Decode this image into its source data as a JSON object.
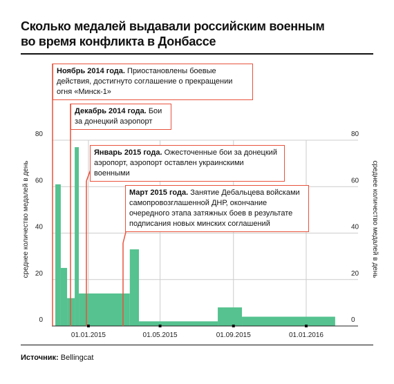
{
  "title": [
    "Сколько медалей выдавали российским военным",
    "во время конфликта в Донбассе"
  ],
  "chart_data": {
    "type": "histogram",
    "bins": [
      2014.848,
      2014.873,
      2014.902,
      2014.937,
      2014.956,
      2015.19,
      2015.232,
      2015.594,
      2015.705,
      2016.133
    ],
    "values": [
      61,
      25,
      12,
      77,
      14,
      33,
      2,
      8,
      4
    ],
    "color": "#55c28f",
    "xlim": [
      2014.832,
      2016.181
    ],
    "xticks": [
      {
        "value": 2015.0,
        "label": "01.01.2015"
      },
      {
        "value": 2015.329,
        "label": "01.05.2015"
      },
      {
        "value": 2015.666,
        "label": "01.09.2015"
      },
      {
        "value": 2016.0,
        "label": "01.01.2016"
      }
    ],
    "ylim": [
      0,
      80
    ],
    "yticks": [
      0,
      20,
      40,
      60,
      80
    ],
    "grid": true,
    "y_label": "среднее количество медалей в день",
    "annotations": [
      {
        "title": "Ноябрь 2014 года.",
        "text": "Приостановлены боевые действия, достигнуто соглашение о прекращении огня «Минск-1»"
      },
      {
        "title": "Декабрь 2014 года.",
        "text": "Бои за донецкий аэропорт"
      },
      {
        "title": "Январь 2015 года.",
        "text": "Ожесточенные бои за донецкий аэропорт, аэропорт оставлен украинскими военными"
      },
      {
        "title": "Март 2015 года.",
        "text": "Занятие Дебальцева войсками самопровозглашенной ДНР, окончание очередного этапа затяжных боев в результате подписания новых минских соглашений"
      }
    ]
  },
  "source": {
    "label": "Источник:",
    "text": "Bellingcat"
  }
}
